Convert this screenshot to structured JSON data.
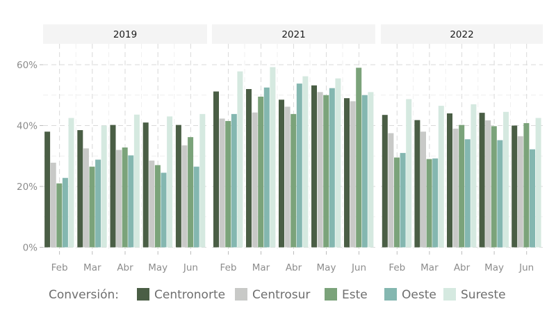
{
  "chart_data": {
    "type": "bar",
    "facets": [
      "2019",
      "2021",
      "2022"
    ],
    "categories": [
      "Feb",
      "Mar",
      "Abr",
      "May",
      "Jun"
    ],
    "y_ticks": [
      "0%",
      "20%",
      "40%",
      "60%"
    ],
    "ylim": [
      0,
      65
    ],
    "xlabel": "",
    "ylabel": "",
    "grid": true,
    "legend_title": "Conversión:",
    "legend_position": "bottom",
    "series": [
      {
        "name": "Centronorte",
        "color": "#4a5e45",
        "values": {
          "2019": [
            38.0,
            38.5,
            40.2,
            41.0,
            40.2
          ],
          "2021": [
            51.2,
            52.0,
            48.5,
            53.2,
            49.0
          ],
          "2022": [
            43.5,
            41.8,
            44.0,
            44.2,
            40.0
          ]
        }
      },
      {
        "name": "Centrosur",
        "color": "#c8c9c7",
        "values": {
          "2019": [
            27.8,
            32.5,
            32.0,
            28.5,
            33.5
          ],
          "2021": [
            42.3,
            44.3,
            46.2,
            51.0,
            48.0
          ],
          "2022": [
            37.5,
            38.0,
            39.0,
            41.7,
            36.5
          ]
        }
      },
      {
        "name": "Este",
        "color": "#7ba37a",
        "values": {
          "2019": [
            21.0,
            26.5,
            32.8,
            27.0,
            36.2
          ],
          "2021": [
            41.5,
            49.5,
            43.8,
            50.0,
            59.0
          ],
          "2022": [
            29.5,
            29.0,
            40.2,
            39.8,
            40.8
          ]
        }
      },
      {
        "name": "Oeste",
        "color": "#84b7b0",
        "values": {
          "2019": [
            22.8,
            28.8,
            30.2,
            24.5,
            26.5
          ],
          "2021": [
            43.8,
            52.5,
            53.8,
            52.3,
            50.0
          ],
          "2022": [
            31.0,
            29.2,
            35.5,
            35.2,
            32.2
          ]
        }
      },
      {
        "name": "Sureste",
        "color": "#d5e9e0",
        "values": {
          "2019": [
            42.5,
            40.0,
            43.6,
            43.0,
            43.8
          ],
          "2021": [
            57.8,
            59.2,
            56.2,
            55.5,
            51.0
          ],
          "2022": [
            48.7,
            46.5,
            47.0,
            44.5,
            42.5
          ]
        }
      }
    ]
  }
}
